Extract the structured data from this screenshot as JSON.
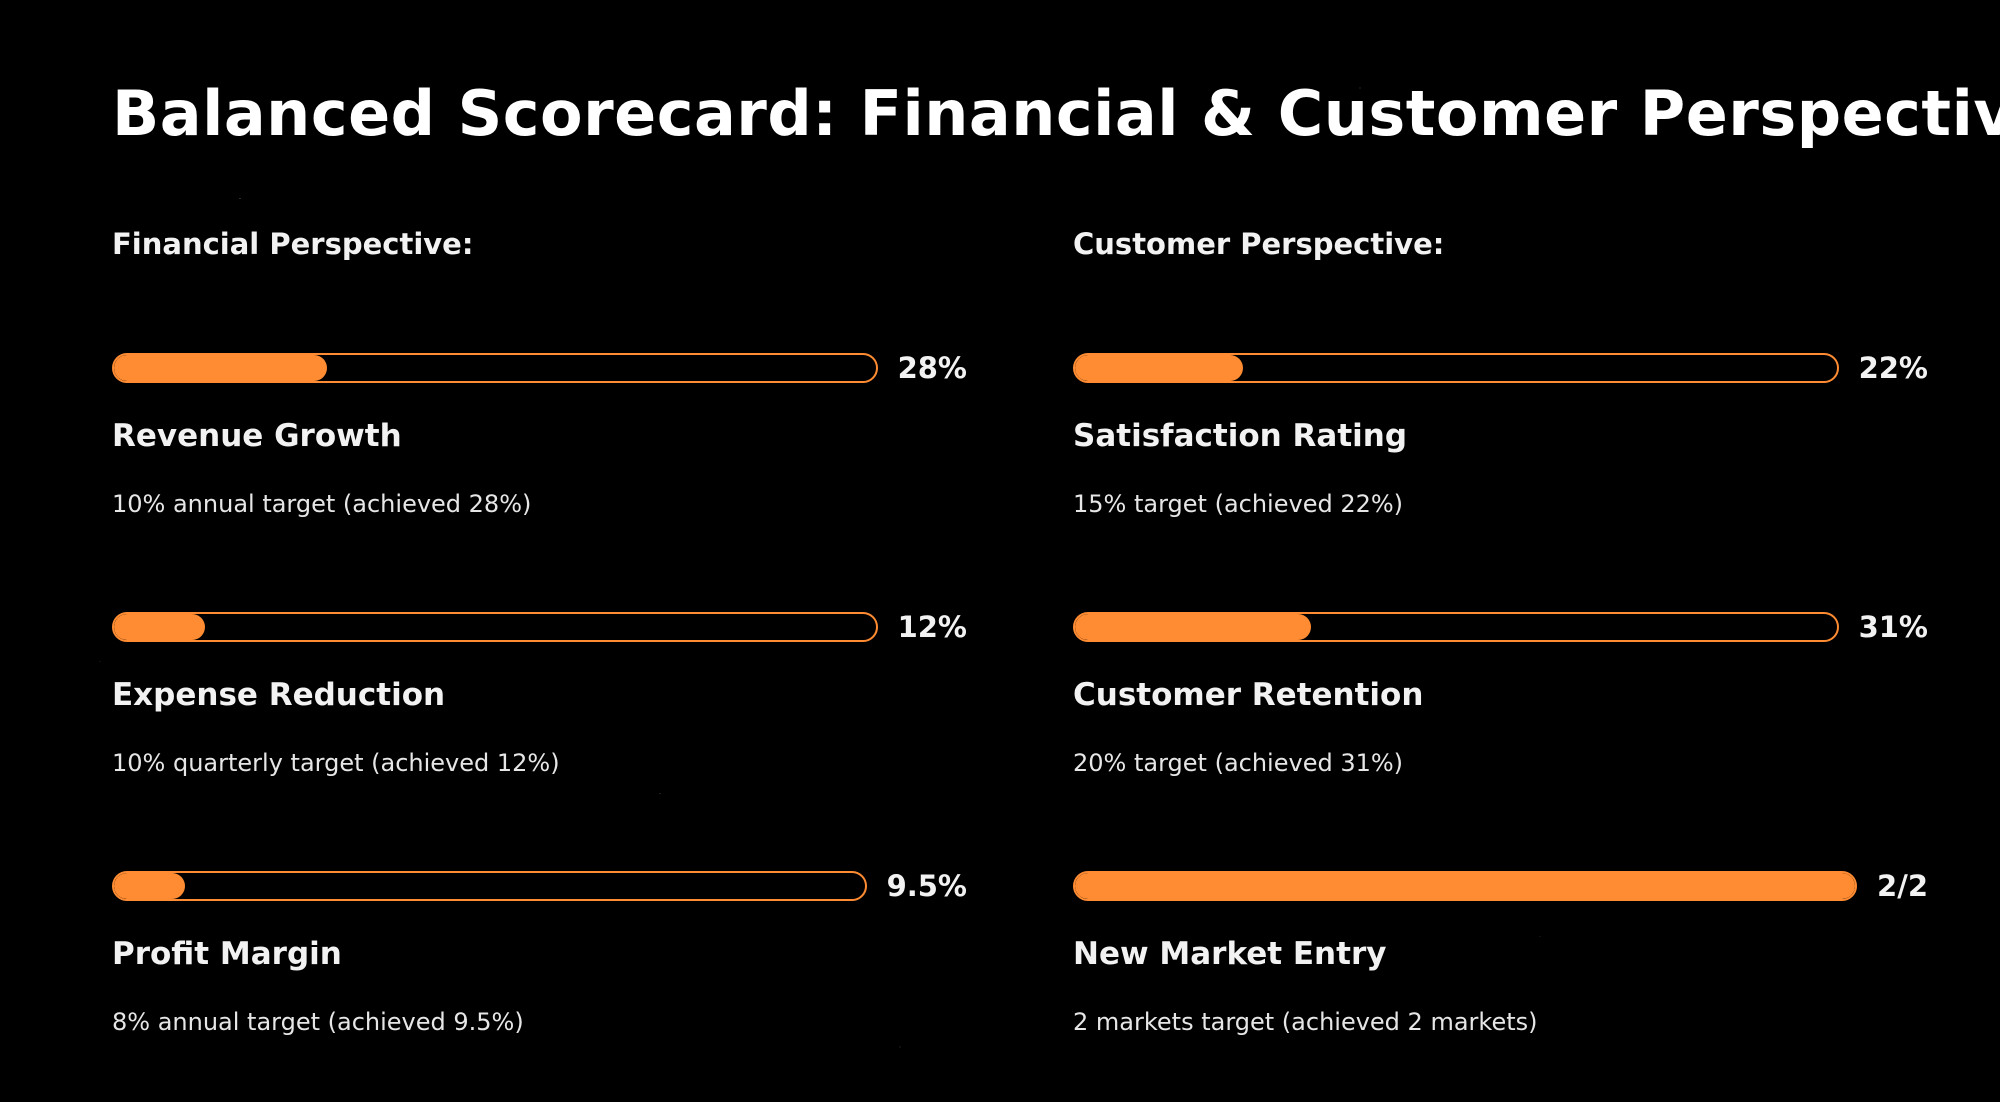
{
  "title": "Balanced Scorecard: Financial & Customer Perspectives",
  "colors": {
    "background": "#000000",
    "accent": "#ff8c32",
    "text": "#ffffff"
  },
  "financial": {
    "heading": "Financial Perspective:",
    "kpis": [
      {
        "name": "Revenue Growth",
        "description": "10% annual target (achieved 28%)",
        "value_label": "28%",
        "progress": 0.28
      },
      {
        "name": "Expense Reduction",
        "description": "10% quarterly target (achieved 12%)",
        "value_label": "12%",
        "progress": 0.12
      },
      {
        "name": "Profit Margin",
        "description": "8% annual target (achieved 9.5%)",
        "value_label": "9.5%",
        "progress": 0.095
      }
    ]
  },
  "customer": {
    "heading": "Customer Perspective:",
    "kpis": [
      {
        "name": "Satisfaction Rating",
        "description": "15% target (achieved 22%)",
        "value_label": "22%",
        "progress": 0.22
      },
      {
        "name": "Customer Retention",
        "description": "20% target (achieved 31%)",
        "value_label": "31%",
        "progress": 0.31
      },
      {
        "name": "New Market Entry",
        "description": "2 markets target (achieved 2 markets)",
        "value_label": "2/2",
        "progress": 1.0
      }
    ]
  }
}
